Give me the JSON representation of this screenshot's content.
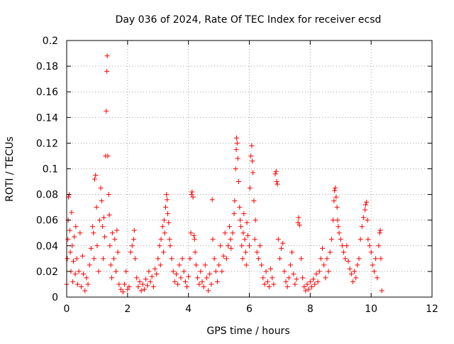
{
  "chart_data": {
    "type": "scatter",
    "title": "Day 036 of 2024, Rate Of TEC Index for receiver ecsd",
    "xlabel": "GPS time / hours",
    "ylabel": "ROTI / TECUs",
    "xlim": [
      0,
      12
    ],
    "ylim": [
      0,
      0.2
    ],
    "x_ticks": [
      "0",
      "2",
      "4",
      "6",
      "8",
      "10",
      "12"
    ],
    "y_ticks": [
      "0",
      "0.02",
      "0.04",
      "0.06",
      "0.08",
      "0.1",
      "0.12",
      "0.14",
      "0.16",
      "0.18",
      "0.2"
    ],
    "grid": true,
    "marker": "+",
    "color": "#ff0000",
    "legend": "none",
    "series": [
      {
        "values_note_free": true,
        "points": [
          [
            0.0,
            0.01
          ],
          [
            0.02,
            0.03
          ],
          [
            0.04,
            0.045
          ],
          [
            0.05,
            0.06
          ],
          [
            0.06,
            0.078
          ],
          [
            0.08,
            0.08
          ],
          [
            0.1,
            0.052
          ],
          [
            0.12,
            0.035
          ],
          [
            0.14,
            0.02
          ],
          [
            0.16,
            0.066
          ],
          [
            0.18,
            0.04
          ],
          [
            0.2,
            0.012
          ],
          [
            0.22,
            0.028
          ],
          [
            0.25,
            0.047
          ],
          [
            0.28,
            0.018
          ],
          [
            0.3,
            0.055
          ],
          [
            0.33,
            0.03
          ],
          [
            0.36,
            0.01
          ],
          [
            0.4,
            0.02
          ],
          [
            0.44,
            0.05
          ],
          [
            0.48,
            0.008
          ],
          [
            0.52,
            0.032
          ],
          [
            0.55,
            0.018
          ],
          [
            0.6,
            0.005
          ],
          [
            0.65,
            0.015
          ],
          [
            0.7,
            0.01
          ],
          [
            0.75,
            0.025
          ],
          [
            0.8,
            0.038
          ],
          [
            0.85,
            0.055
          ],
          [
            0.88,
            0.05
          ],
          [
            0.9,
            0.03
          ],
          [
            0.92,
            0.092
          ],
          [
            0.95,
            0.095
          ],
          [
            0.98,
            0.07
          ],
          [
            1.0,
            0.04
          ],
          [
            1.05,
            0.02
          ],
          [
            1.08,
            0.06
          ],
          [
            1.12,
            0.085
          ],
          [
            1.15,
            0.075
          ],
          [
            1.18,
            0.055
          ],
          [
            1.2,
            0.03
          ],
          [
            1.22,
            0.062
          ],
          [
            1.25,
            0.047
          ],
          [
            1.28,
            0.11
          ],
          [
            1.3,
            0.145
          ],
          [
            1.32,
            0.176
          ],
          [
            1.33,
            0.188
          ],
          [
            1.35,
            0.11
          ],
          [
            1.38,
            0.08
          ],
          [
            1.4,
            0.064
          ],
          [
            1.42,
            0.04
          ],
          [
            1.45,
            0.025
          ],
          [
            1.48,
            0.015
          ],
          [
            1.5,
            0.05
          ],
          [
            1.55,
            0.03
          ],
          [
            1.58,
            0.045
          ],
          [
            1.62,
            0.02
          ],
          [
            1.65,
            0.052
          ],
          [
            1.68,
            0.035
          ],
          [
            1.72,
            0.01
          ],
          [
            1.78,
            0.006
          ],
          [
            1.85,
            0.004
          ],
          [
            1.9,
            0.01
          ],
          [
            1.95,
            0.02
          ],
          [
            2.0,
            0.006
          ],
          [
            2.05,
            0.008
          ],
          [
            2.1,
            0.035
          ],
          [
            2.15,
            0.04
          ],
          [
            2.2,
            0.045
          ],
          [
            2.22,
            0.052
          ],
          [
            2.25,
            0.03
          ],
          [
            2.3,
            0.015
          ],
          [
            2.35,
            0.008
          ],
          [
            2.4,
            0.012
          ],
          [
            2.45,
            0.005
          ],
          [
            2.5,
            0.01
          ],
          [
            2.55,
            0.006
          ],
          [
            2.6,
            0.014
          ],
          [
            2.65,
            0.009
          ],
          [
            2.7,
            0.02
          ],
          [
            2.75,
            0.012
          ],
          [
            2.8,
            0.016
          ],
          [
            2.85,
            0.008
          ],
          [
            2.9,
            0.022
          ],
          [
            2.95,
            0.018
          ],
          [
            3.0,
            0.03
          ],
          [
            3.05,
            0.04
          ],
          [
            3.08,
            0.025
          ],
          [
            3.1,
            0.045
          ],
          [
            3.15,
            0.055
          ],
          [
            3.18,
            0.035
          ],
          [
            3.2,
            0.06
          ],
          [
            3.22,
            0.05
          ],
          [
            3.25,
            0.07
          ],
          [
            3.28,
            0.08
          ],
          [
            3.3,
            0.076
          ],
          [
            3.32,
            0.065
          ],
          [
            3.35,
            0.058
          ],
          [
            3.38,
            0.045
          ],
          [
            3.4,
            0.04
          ],
          [
            3.45,
            0.03
          ],
          [
            3.5,
            0.02
          ],
          [
            3.55,
            0.012
          ],
          [
            3.6,
            0.018
          ],
          [
            3.65,
            0.01
          ],
          [
            3.7,
            0.025
          ],
          [
            3.75,
            0.015
          ],
          [
            3.8,
            0.03
          ],
          [
            3.85,
            0.02
          ],
          [
            3.9,
            0.012
          ],
          [
            3.95,
            0.008
          ],
          [
            4.0,
            0.016
          ],
          [
            4.05,
            0.03
          ],
          [
            4.08,
            0.05
          ],
          [
            4.1,
            0.08
          ],
          [
            4.12,
            0.082
          ],
          [
            4.15,
            0.078
          ],
          [
            4.18,
            0.048
          ],
          [
            4.2,
            0.045
          ],
          [
            4.22,
            0.035
          ],
          [
            4.25,
            0.025
          ],
          [
            4.3,
            0.015
          ],
          [
            4.35,
            0.01
          ],
          [
            4.4,
            0.02
          ],
          [
            4.45,
            0.012
          ],
          [
            4.5,
            0.008
          ],
          [
            4.55,
            0.025
          ],
          [
            4.6,
            0.015
          ],
          [
            4.65,
            0.005
          ],
          [
            4.7,
            0.018
          ],
          [
            4.75,
            0.01
          ],
          [
            4.78,
            0.076
          ],
          [
            4.8,
            0.045
          ],
          [
            4.85,
            0.03
          ],
          [
            4.9,
            0.02
          ],
          [
            4.95,
            0.012
          ],
          [
            5.0,
            0.025
          ],
          [
            5.05,
            0.04
          ],
          [
            5.1,
            0.02
          ],
          [
            5.15,
            0.032
          ],
          [
            5.2,
            0.05
          ],
          [
            5.25,
            0.03
          ],
          [
            5.3,
            0.04
          ],
          [
            5.35,
            0.055
          ],
          [
            5.38,
            0.045
          ],
          [
            5.4,
            0.038
          ],
          [
            5.45,
            0.05
          ],
          [
            5.5,
            0.065
          ],
          [
            5.52,
            0.075
          ],
          [
            5.55,
            0.1
          ],
          [
            5.57,
            0.115
          ],
          [
            5.58,
            0.124
          ],
          [
            5.6,
            0.12
          ],
          [
            5.62,
            0.108
          ],
          [
            5.65,
            0.09
          ],
          [
            5.68,
            0.07
          ],
          [
            5.7,
            0.06
          ],
          [
            5.72,
            0.055
          ],
          [
            5.75,
            0.04
          ],
          [
            5.78,
            0.03
          ],
          [
            5.8,
            0.05
          ],
          [
            5.82,
            0.065
          ],
          [
            5.85,
            0.045
          ],
          [
            5.88,
            0.035
          ],
          [
            5.9,
            0.025
          ],
          [
            5.92,
            0.058
          ],
          [
            5.95,
            0.048
          ],
          [
            6.0,
            0.04
          ],
          [
            6.02,
            0.085
          ],
          [
            6.05,
            0.11
          ],
          [
            6.08,
            0.118
          ],
          [
            6.1,
            0.106
          ],
          [
            6.12,
            0.097
          ],
          [
            6.15,
            0.075
          ],
          [
            6.18,
            0.045
          ],
          [
            6.2,
            0.06
          ],
          [
            6.25,
            0.035
          ],
          [
            6.3,
            0.03
          ],
          [
            6.35,
            0.04
          ],
          [
            6.4,
            0.025
          ],
          [
            6.45,
            0.015
          ],
          [
            6.5,
            0.01
          ],
          [
            6.55,
            0.02
          ],
          [
            6.6,
            0.012
          ],
          [
            6.65,
            0.008
          ],
          [
            6.7,
            0.022
          ],
          [
            6.75,
            0.015
          ],
          [
            6.8,
            0.01
          ],
          [
            6.85,
            0.096
          ],
          [
            6.88,
            0.098
          ],
          [
            6.9,
            0.09
          ],
          [
            6.92,
            0.088
          ],
          [
            6.95,
            0.045
          ],
          [
            7.0,
            0.03
          ],
          [
            7.05,
            0.038
          ],
          [
            7.1,
            0.042
          ],
          [
            7.15,
            0.02
          ],
          [
            7.2,
            0.012
          ],
          [
            7.25,
            0.008
          ],
          [
            7.3,
            0.015
          ],
          [
            7.35,
            0.025
          ],
          [
            7.4,
            0.035
          ],
          [
            7.45,
            0.018
          ],
          [
            7.5,
            0.01
          ],
          [
            7.55,
            0.014
          ],
          [
            7.6,
            0.058
          ],
          [
            7.62,
            0.062
          ],
          [
            7.65,
            0.056
          ],
          [
            7.7,
            0.03
          ],
          [
            7.75,
            0.015
          ],
          [
            7.8,
            0.008
          ],
          [
            7.85,
            0.005
          ],
          [
            7.9,
            0.01
          ],
          [
            7.95,
            0.006
          ],
          [
            8.0,
            0.012
          ],
          [
            8.05,
            0.008
          ],
          [
            8.1,
            0.014
          ],
          [
            8.15,
            0.01
          ],
          [
            8.2,
            0.018
          ],
          [
            8.25,
            0.012
          ],
          [
            8.3,
            0.02
          ],
          [
            8.35,
            0.03
          ],
          [
            8.4,
            0.038
          ],
          [
            8.45,
            0.025
          ],
          [
            8.5,
            0.015
          ],
          [
            8.55,
            0.03
          ],
          [
            8.6,
            0.02
          ],
          [
            8.65,
            0.035
          ],
          [
            8.7,
            0.045
          ],
          [
            8.75,
            0.06
          ],
          [
            8.78,
            0.075
          ],
          [
            8.8,
            0.083
          ],
          [
            8.82,
            0.085
          ],
          [
            8.85,
            0.078
          ],
          [
            8.88,
            0.07
          ],
          [
            8.9,
            0.06
          ],
          [
            8.92,
            0.055
          ],
          [
            8.95,
            0.05
          ],
          [
            9.0,
            0.045
          ],
          [
            9.05,
            0.04
          ],
          [
            9.1,
            0.035
          ],
          [
            9.15,
            0.03
          ],
          [
            9.2,
            0.04
          ],
          [
            9.25,
            0.028
          ],
          [
            9.3,
            0.022
          ],
          [
            9.35,
            0.018
          ],
          [
            9.4,
            0.012
          ],
          [
            9.45,
            0.02
          ],
          [
            9.5,
            0.015
          ],
          [
            9.55,
            0.025
          ],
          [
            9.6,
            0.03
          ],
          [
            9.65,
            0.045
          ],
          [
            9.7,
            0.055
          ],
          [
            9.75,
            0.062
          ],
          [
            9.8,
            0.068
          ],
          [
            9.82,
            0.072
          ],
          [
            9.85,
            0.074
          ],
          [
            9.88,
            0.06
          ],
          [
            9.9,
            0.045
          ],
          [
            9.95,
            0.04
          ],
          [
            10.0,
            0.035
          ],
          [
            10.05,
            0.025
          ],
          [
            10.1,
            0.02
          ],
          [
            10.15,
            0.03
          ],
          [
            10.2,
            0.015
          ],
          [
            10.25,
            0.04
          ],
          [
            10.28,
            0.05
          ],
          [
            10.3,
            0.052
          ],
          [
            10.32,
            0.03
          ],
          [
            10.35,
            0.005
          ]
        ]
      }
    ]
  }
}
